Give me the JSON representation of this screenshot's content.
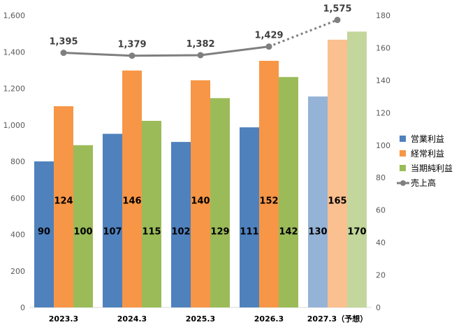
{
  "chart_data": {
    "type": "bar",
    "categories": [
      "2023.3",
      "2024.3",
      "2025.3",
      "2026.3",
      "2027.3（予想）"
    ],
    "forecast_index": 4,
    "series": [
      {
        "name": "営業利益",
        "type": "bar",
        "axis": "right",
        "values": [
          90,
          107,
          102,
          111,
          130
        ],
        "color": "#4f81bd",
        "forecast_color": "#95b3d7"
      },
      {
        "name": "経常利益",
        "type": "bar",
        "axis": "right",
        "values": [
          124,
          146,
          140,
          152,
          165
        ],
        "color": "#f79646",
        "forecast_color": "#fac090"
      },
      {
        "name": "当期純利益",
        "type": "bar",
        "axis": "right",
        "values": [
          100,
          115,
          129,
          142,
          170
        ],
        "color": "#9bbb59",
        "forecast_color": "#c3d69b"
      },
      {
        "name": "売上高",
        "type": "line",
        "axis": "left",
        "values": [
          1395,
          1379,
          1382,
          1429,
          1575
        ],
        "labels": [
          "1,395",
          "1,379",
          "1,382",
          "1,429",
          "1,575"
        ],
        "color": "#7f7f7f"
      }
    ],
    "bar_labels": [
      [
        "90",
        "107",
        "102",
        "111",
        "130"
      ],
      [
        "124",
        "146",
        "140",
        "152",
        "165"
      ],
      [
        "100",
        "115",
        "129",
        "142",
        "170"
      ]
    ],
    "y_left": {
      "min": 0,
      "max": 1600,
      "ticks": [
        0,
        200,
        400,
        600,
        800,
        1000,
        1200,
        1400,
        1600
      ],
      "tick_labels": [
        "0",
        "200",
        "400",
        "600",
        "800",
        "1,000",
        "1,200",
        "1,400",
        "1,600"
      ]
    },
    "y_right": {
      "min": 0,
      "max": 180,
      "ticks": [
        0,
        20,
        40,
        60,
        80,
        100,
        120,
        140,
        160,
        180
      ],
      "tick_labels": [
        "0",
        "20",
        "40",
        "60",
        "80",
        "100",
        "120",
        "140",
        "160",
        "180"
      ]
    },
    "grid": false,
    "legend_position": "right"
  }
}
